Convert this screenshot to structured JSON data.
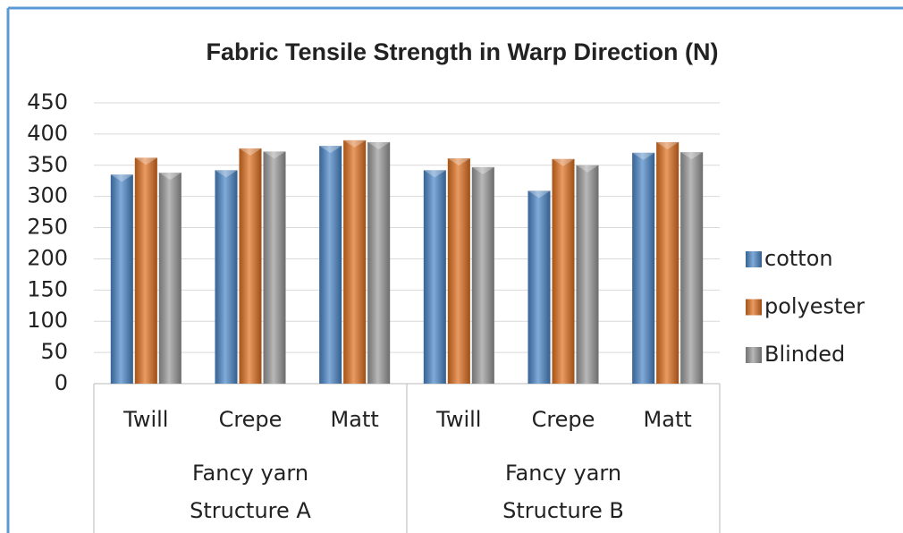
{
  "chart_data": {
    "type": "bar",
    "title": "Fabric Tensile Strength in Warp Direction (N)",
    "groups": [
      {
        "label": [
          "Fancy yarn",
          "Structure A"
        ],
        "categories": [
          "Twill",
          "Crepe",
          "Matt"
        ]
      },
      {
        "label": [
          "Fancy yarn",
          "Structure B"
        ],
        "categories": [
          "Twill",
          "Crepe",
          "Matt"
        ]
      }
    ],
    "series": [
      {
        "name": "cotton",
        "color": "#4a86c8",
        "values": [
          335,
          342,
          381,
          342,
          309,
          370
        ]
      },
      {
        "name": "polyester",
        "color": "#e0701f",
        "values": [
          362,
          377,
          390,
          361,
          360,
          387
        ]
      },
      {
        "name": "Blinded",
        "color": "#9a9a9a",
        "values": [
          338,
          372,
          387,
          347,
          350,
          371
        ]
      }
    ],
    "ylim": [
      0,
      450
    ],
    "yticks": [
      0,
      50,
      100,
      150,
      200,
      250,
      300,
      350,
      400,
      450
    ],
    "grid": true,
    "legend": "right"
  }
}
